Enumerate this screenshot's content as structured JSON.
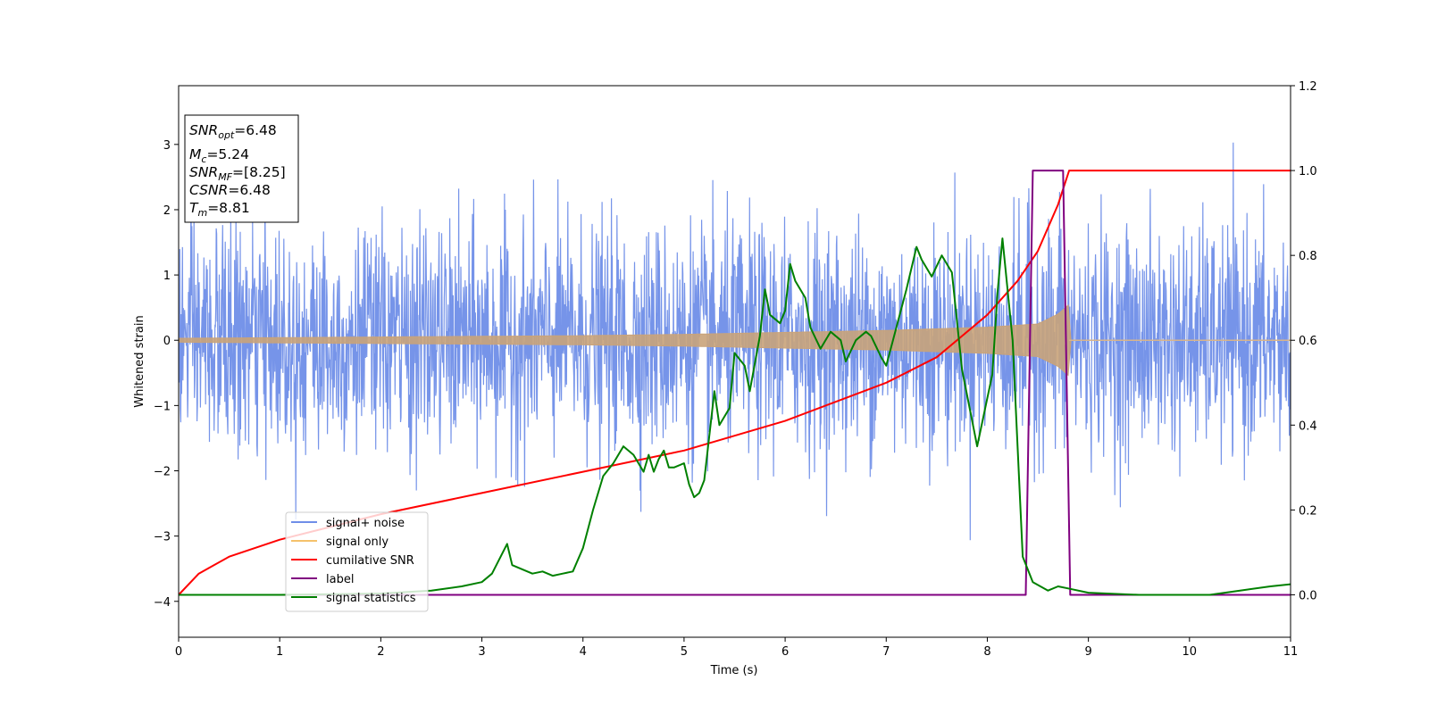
{
  "chart_data": {
    "type": "line",
    "xlabel": "Time (s)",
    "ylabel": "Whitened strain",
    "xlim": [
      0,
      11
    ],
    "ylim": [
      -4.55,
      3.9
    ],
    "y2lim": [
      -0.1,
      1.2
    ],
    "x_ticks": [
      "0",
      "1",
      "2",
      "3",
      "4",
      "5",
      "6",
      "7",
      "8",
      "9",
      "10",
      "11"
    ],
    "y_ticks": [
      "−4",
      "−3",
      "−2",
      "−1",
      "0",
      "1",
      "2",
      "3"
    ],
    "y2_ticks": [
      "0.0",
      "0.2",
      "0.4",
      "0.6",
      "0.8",
      "1.0",
      "1.2"
    ],
    "grid": false,
    "legend_position": "lower-left",
    "info_box": {
      "snr_opt": {
        "base": "SNR",
        "sub": "opt",
        "value": "=6.48"
      },
      "mc": {
        "base": "M",
        "sub": "c",
        "value": "=5.24"
      },
      "snr_mf": {
        "base": "SNR",
        "sub": "MF",
        "value": "=[8.25]"
      },
      "csnr": {
        "base": "CSNR",
        "value": "=6.48"
      },
      "tm": {
        "base": "T",
        "sub": "m",
        "value": "=8.81"
      }
    },
    "series": [
      {
        "name": "signal+ noise",
        "axis": "left",
        "color": "#6f8ee8",
        "description_values": {
          "noise_std": 0.85,
          "x_range": [
            0,
            11
          ]
        }
      },
      {
        "name": "signal only",
        "axis": "left",
        "color": "#f5c26b",
        "envelope": {
          "x": [
            0,
            2,
            4,
            5,
            6,
            7,
            8,
            8.5,
            8.7,
            8.81,
            8.82,
            11
          ],
          "amplitude": [
            0.03,
            0.05,
            0.07,
            0.09,
            0.12,
            0.15,
            0.2,
            0.25,
            0.4,
            0.55,
            0.0,
            0.0
          ]
        }
      },
      {
        "name": "cumilative SNR",
        "axis": "right",
        "color": "#ff0000",
        "x": [
          0,
          0.2,
          0.5,
          1,
          2,
          3,
          4,
          5,
          6,
          7,
          7.5,
          8,
          8.3,
          8.5,
          8.7,
          8.81,
          11
        ],
        "values": [
          0.0,
          0.05,
          0.09,
          0.13,
          0.19,
          0.24,
          0.29,
          0.34,
          0.41,
          0.5,
          0.56,
          0.66,
          0.74,
          0.81,
          0.92,
          1.0,
          1.0
        ]
      },
      {
        "name": "label",
        "axis": "right",
        "color": "#800080",
        "x": [
          0,
          8.38,
          8.45,
          8.75,
          8.82,
          11
        ],
        "values": [
          0,
          0,
          1.0,
          1.0,
          0,
          0
        ]
      },
      {
        "name": "signal statistics",
        "axis": "right",
        "color": "#008000",
        "x": [
          0,
          1,
          2,
          2.5,
          2.8,
          3.0,
          3.1,
          3.25,
          3.3,
          3.4,
          3.5,
          3.6,
          3.7,
          3.8,
          3.9,
          4.0,
          4.1,
          4.2,
          4.3,
          4.4,
          4.5,
          4.6,
          4.65,
          4.7,
          4.75,
          4.8,
          4.85,
          4.9,
          5.0,
          5.05,
          5.1,
          5.15,
          5.2,
          5.3,
          5.35,
          5.45,
          5.5,
          5.6,
          5.65,
          5.75,
          5.8,
          5.85,
          5.95,
          6.0,
          6.05,
          6.1,
          6.2,
          6.25,
          6.35,
          6.45,
          6.55,
          6.6,
          6.7,
          6.8,
          6.85,
          6.95,
          7.0,
          7.1,
          7.2,
          7.3,
          7.35,
          7.45,
          7.55,
          7.65,
          7.75,
          7.85,
          7.9,
          8.05,
          8.1,
          8.15,
          8.2,
          8.25,
          8.35,
          8.45,
          8.6,
          8.7,
          8.8,
          9.0,
          9.5,
          10.0,
          10.2,
          10.5,
          10.8,
          11.0
        ],
        "values": [
          0.0,
          0.0,
          0.003,
          0.01,
          0.02,
          0.03,
          0.05,
          0.12,
          0.07,
          0.06,
          0.05,
          0.055,
          0.045,
          0.05,
          0.055,
          0.11,
          0.2,
          0.28,
          0.31,
          0.35,
          0.33,
          0.29,
          0.33,
          0.29,
          0.32,
          0.34,
          0.3,
          0.3,
          0.31,
          0.26,
          0.23,
          0.24,
          0.27,
          0.48,
          0.4,
          0.44,
          0.57,
          0.54,
          0.48,
          0.61,
          0.72,
          0.66,
          0.64,
          0.67,
          0.78,
          0.74,
          0.7,
          0.63,
          0.58,
          0.62,
          0.6,
          0.55,
          0.6,
          0.62,
          0.61,
          0.56,
          0.54,
          0.63,
          0.72,
          0.82,
          0.79,
          0.75,
          0.8,
          0.76,
          0.53,
          0.41,
          0.35,
          0.52,
          0.71,
          0.84,
          0.72,
          0.6,
          0.09,
          0.03,
          0.01,
          0.02,
          0.015,
          0.005,
          0.0,
          0.0,
          0.0,
          0.01,
          0.02,
          0.025
        ]
      }
    ]
  }
}
